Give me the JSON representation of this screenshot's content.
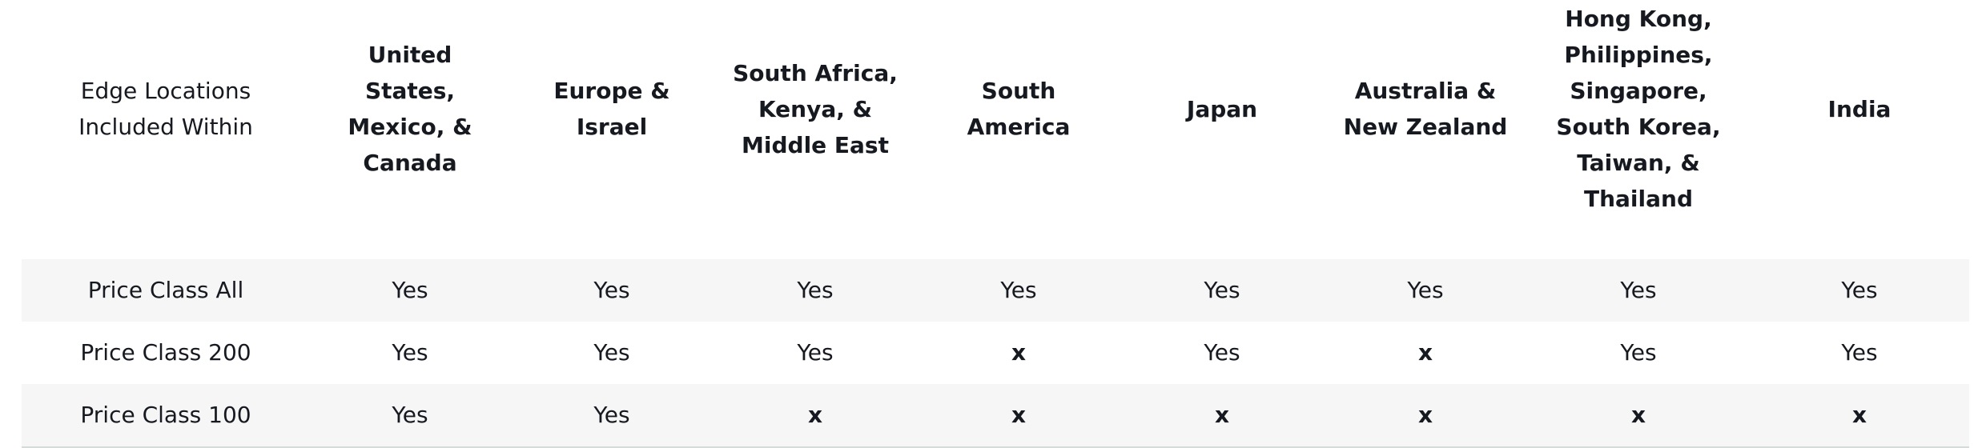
{
  "table": {
    "headers": [
      "Edge Locations Included Within",
      "United States, Mexico, & Canada",
      "Europe & Israel",
      "South Africa, Kenya, & Middle East",
      "South America",
      "Japan",
      "Australia & New Zealand",
      "Hong Kong, Philippines, Singapore, South Korea, Taiwan, & Thailand",
      "India"
    ],
    "rows": [
      {
        "label": "Price Class All",
        "cells": [
          "Yes",
          "Yes",
          "Yes",
          "Yes",
          "Yes",
          "Yes",
          "Yes",
          "Yes"
        ]
      },
      {
        "label": "Price Class 200",
        "cells": [
          "Yes",
          "Yes",
          "Yes",
          "x",
          "Yes",
          "x",
          "Yes",
          "Yes"
        ]
      },
      {
        "label": "Price Class 100",
        "cells": [
          "Yes",
          "Yes",
          "x",
          "x",
          "x",
          "x",
          "x",
          "x"
        ]
      }
    ]
  }
}
